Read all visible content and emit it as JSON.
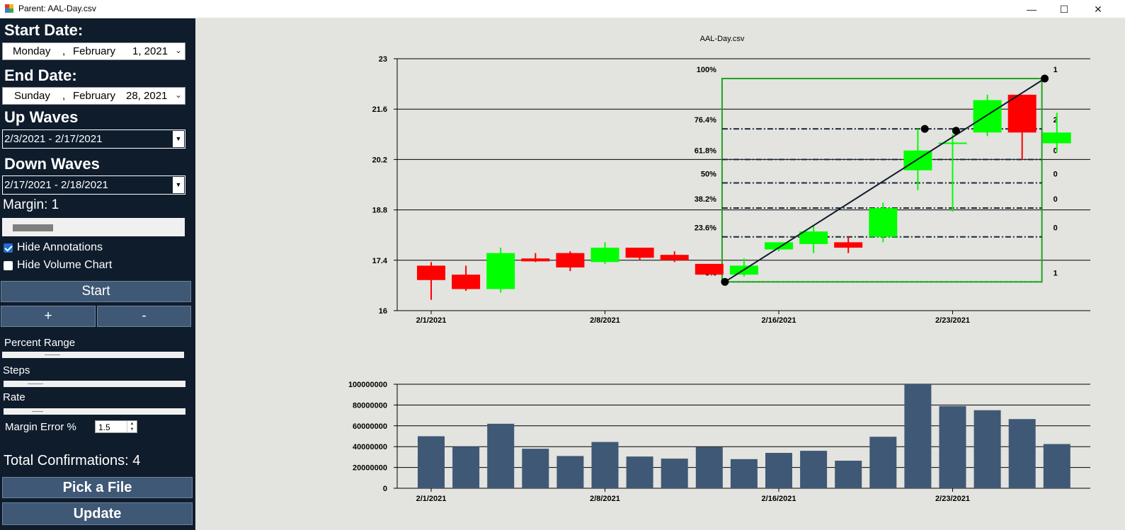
{
  "window": {
    "title": "Parent: AAL-Day.csv",
    "minimize_glyph": "—",
    "maximize_glyph": "☐",
    "close_glyph": "✕"
  },
  "sidebar": {
    "start_date_heading": "Start Date:",
    "start_date": {
      "weekday": "Monday",
      "sep": ",",
      "month": "February",
      "day_year": "1, 2021"
    },
    "end_date_heading": "End Date:",
    "end_date": {
      "weekday": "Sunday",
      "sep": ",",
      "month": "February",
      "day_year": "28, 2021"
    },
    "up_waves_heading": "Up Waves",
    "up_waves_value": "2/3/2021 - 2/17/2021",
    "down_waves_heading": "Down Waves",
    "down_waves_value": "2/17/2021 - 2/18/2021",
    "margin_label": "Margin: 1",
    "hide_annotations_label": "Hide Annotations",
    "hide_annotations_checked": true,
    "hide_volume_label": "Hide Volume Chart",
    "hide_volume_checked": false,
    "start_button": "Start",
    "plus_button": "+",
    "minus_button": "-",
    "percent_range_label": "Percent Range",
    "steps_label": "Steps",
    "rate_label": "Rate",
    "margin_error_label": "Margin Error %",
    "margin_error_value": "1.5",
    "total_confirmations": "Total Confirmations: 4",
    "pick_file_button": "Pick a File",
    "update_button": "Update"
  },
  "chart_data": [
    {
      "type": "candlestick",
      "title": "AAL-Day.csv",
      "ylim": [
        16,
        23
      ],
      "yticks": [
        "16",
        "17.4",
        "18.8",
        "20.2",
        "21.6",
        "23"
      ],
      "xtick_labels": [
        "2/1/2021",
        "2/8/2021",
        "2/16/2021",
        "2/23/2021"
      ],
      "colors": {
        "up": "#00ff00",
        "down": "#ff0000"
      },
      "candles": [
        {
          "open": 17.25,
          "high": 17.35,
          "low": 16.3,
          "close": 16.85
        },
        {
          "open": 17.0,
          "high": 17.25,
          "low": 16.55,
          "close": 16.6
        },
        {
          "open": 16.6,
          "high": 17.75,
          "low": 16.5,
          "close": 17.6
        },
        {
          "open": 17.45,
          "high": 17.6,
          "low": 17.35,
          "close": 17.37
        },
        {
          "open": 17.6,
          "high": 17.65,
          "low": 17.1,
          "close": 17.2
        },
        {
          "open": 17.35,
          "high": 17.9,
          "low": 17.3,
          "close": 17.75
        },
        {
          "open": 17.75,
          "high": 17.75,
          "low": 17.4,
          "close": 17.47
        },
        {
          "open": 17.55,
          "high": 17.65,
          "low": 17.35,
          "close": 17.4
        },
        {
          "open": 17.3,
          "high": 17.3,
          "low": 17.0,
          "close": 17.0
        },
        {
          "open": 17.0,
          "high": 17.45,
          "low": 16.95,
          "close": 17.25
        },
        {
          "open": 17.7,
          "high": 17.9,
          "low": 17.65,
          "close": 17.9
        },
        {
          "open": 17.85,
          "high": 18.35,
          "low": 17.6,
          "close": 18.2
        },
        {
          "open": 17.9,
          "high": 18.05,
          "low": 17.6,
          "close": 17.75
        },
        {
          "open": 18.05,
          "high": 19.0,
          "low": 17.9,
          "close": 18.85
        },
        {
          "open": 19.9,
          "high": 21.05,
          "low": 19.35,
          "close": 20.45
        },
        {
          "open": 20.65,
          "high": 20.9,
          "low": 18.75,
          "close": 20.65
        },
        {
          "open": 20.95,
          "high": 22.0,
          "low": 20.85,
          "close": 21.85
        },
        {
          "open": 22.0,
          "high": 22.0,
          "low": 20.2,
          "close": 20.95
        },
        {
          "open": 20.65,
          "high": 21.5,
          "low": 20.4,
          "close": 20.95
        }
      ],
      "fib_levels": [
        {
          "label": "100%",
          "value": 22.45,
          "count": "1"
        },
        {
          "label": "76.4%",
          "value": 21.05,
          "count": "2"
        },
        {
          "label": "61.8%",
          "value": 20.2,
          "count": "0"
        },
        {
          "label": "50%",
          "value": 19.55,
          "count": "0"
        },
        {
          "label": "38.2%",
          "value": 18.85,
          "count": "0"
        },
        {
          "label": "23.6%",
          "value": 18.05,
          "count": "0"
        },
        {
          "label": "0%",
          "value": 16.8,
          "count": "1"
        }
      ],
      "wave_line": {
        "from_index": 8.45,
        "from_value": 16.8,
        "to_index": 17.65,
        "to_value": 22.45
      },
      "markers": [
        {
          "index": 8.45,
          "value": 16.8
        },
        {
          "index": 14.2,
          "value": 21.05
        },
        {
          "index": 15.1,
          "value": 21.0
        },
        {
          "index": 17.65,
          "value": 22.45
        }
      ]
    },
    {
      "type": "bar",
      "ylim": [
        0,
        100000000
      ],
      "yticks": [
        "0",
        "20000000",
        "40000000",
        "60000000",
        "80000000",
        "100000000"
      ],
      "xtick_labels": [
        "2/1/2021",
        "2/8/2021",
        "2/16/2021",
        "2/23/2021"
      ],
      "bar_color": "#3f5875",
      "values": [
        50000000,
        40000000,
        62000000,
        38000000,
        31000000,
        44500000,
        30500000,
        28500000,
        39500000,
        28000000,
        34000000,
        36000000,
        26500000,
        49500000,
        100000000,
        79000000,
        75000000,
        66500000,
        42500000
      ]
    }
  ]
}
